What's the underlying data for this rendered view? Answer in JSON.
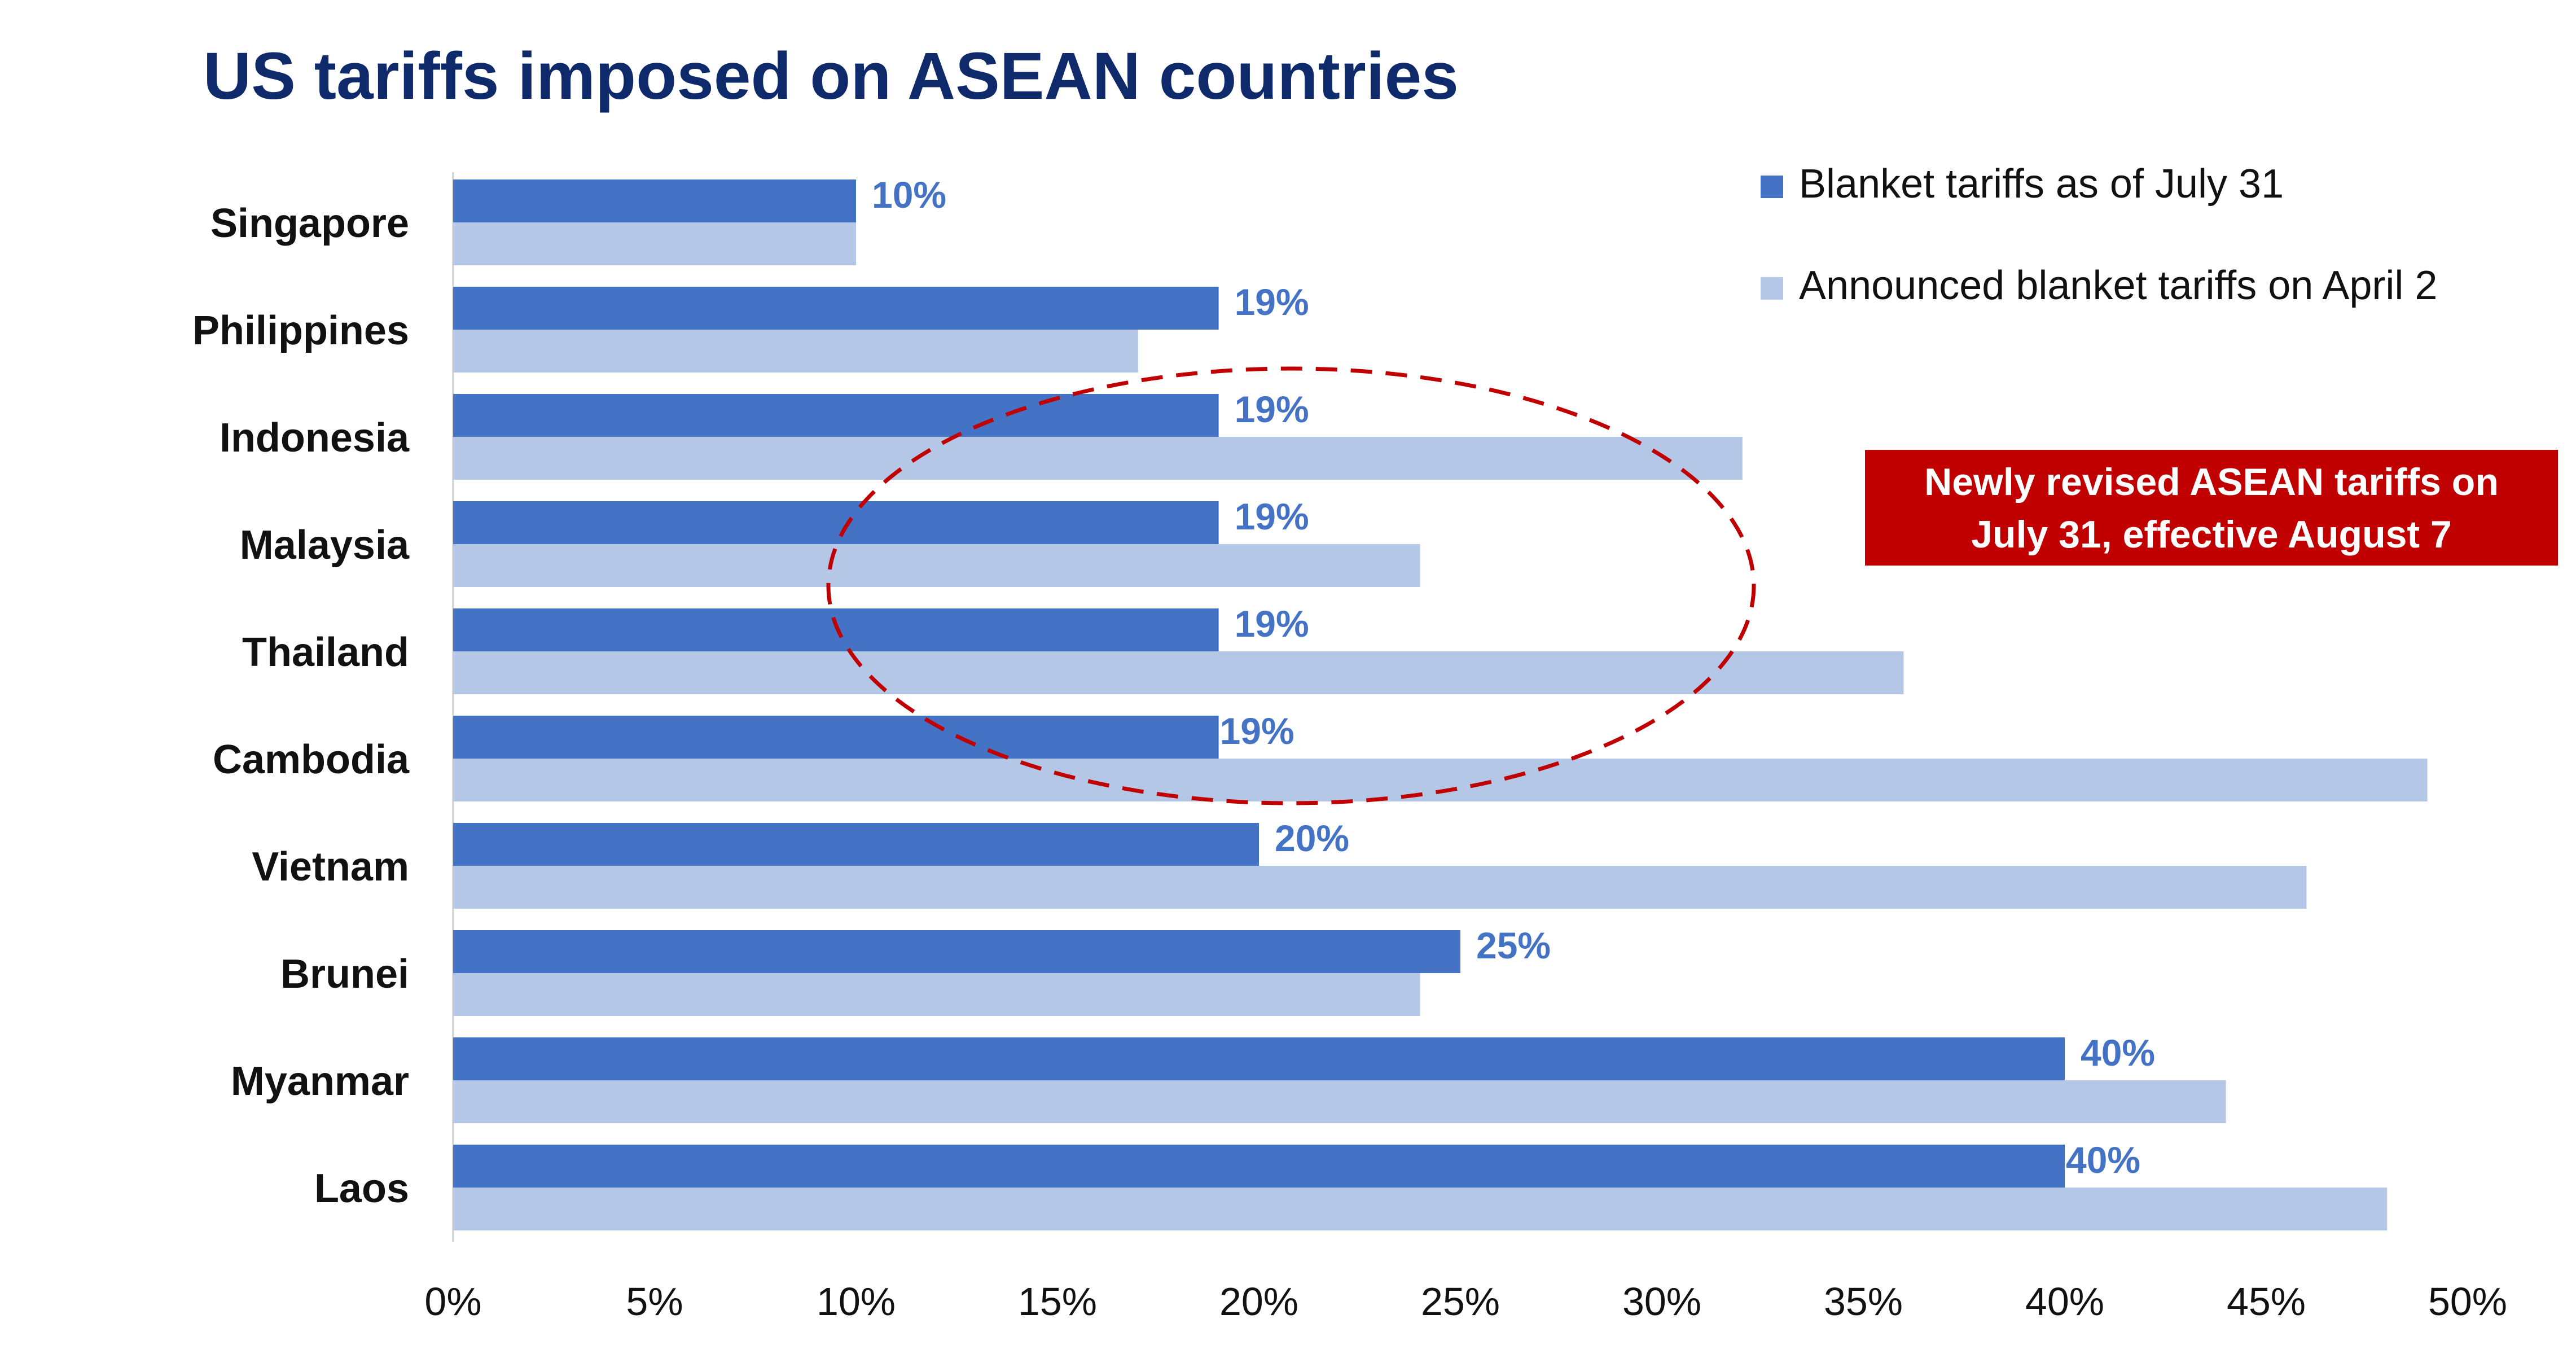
{
  "chart_data": {
    "type": "bar",
    "orientation": "horizontal",
    "title": "US tariffs imposed on ASEAN countries",
    "categories": [
      "Singapore",
      "Philippines",
      "Indonesia",
      "Malaysia",
      "Thailand",
      "Cambodia",
      "Vietnam",
      "Brunei",
      "Myanmar",
      "Laos"
    ],
    "series": [
      {
        "name": "Blanket tariffs as of July 31",
        "color": "#4472C4",
        "values": [
          10,
          19,
          19,
          19,
          19,
          19,
          20,
          25,
          40,
          40
        ],
        "data_labels": [
          "10%",
          "19%",
          "19%",
          "19%",
          "19%",
          "19%",
          "20%",
          "25%",
          "40%",
          "40%"
        ]
      },
      {
        "name": "Announced blanket tariffs on April 2",
        "color": "#B4C7E7",
        "values": [
          10,
          17,
          32,
          24,
          36,
          49,
          46,
          24,
          44,
          48
        ]
      }
    ],
    "xlim": [
      0,
      50
    ],
    "x_ticks": [
      "0%",
      "5%",
      "10%",
      "15%",
      "20%",
      "25%",
      "30%",
      "35%",
      "40%",
      "45%",
      "50%"
    ],
    "grid": false,
    "legend_position": "top-right",
    "annotation": {
      "text_line1": "Newly revised ASEAN tariffs on",
      "text_line2": "July 31, effective August 7",
      "background_color": "#C00000",
      "text_color": "#FFFFFF",
      "highlight_color": "#C00000"
    }
  },
  "colors": {
    "title": "#0F2A6B",
    "label_text": "#111111",
    "axis": "#D9D9D9"
  }
}
